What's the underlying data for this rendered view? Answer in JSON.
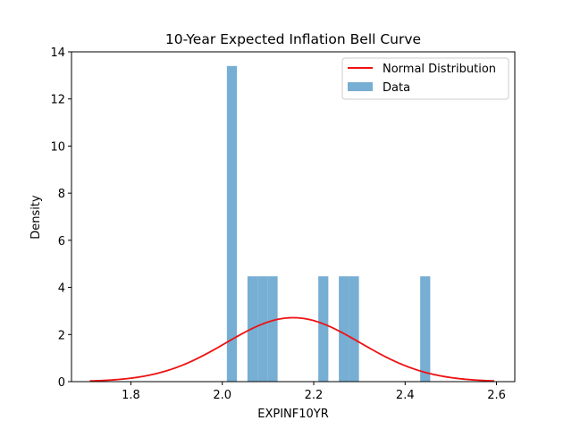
{
  "chart_data": {
    "type": "bar",
    "title": "10-Year Expected Inflation Bell Curve",
    "xlabel": "EXPINF10YR",
    "ylabel": "Density",
    "xlim": [
      1.67,
      2.64
    ],
    "ylim": [
      0,
      14
    ],
    "xticks": [
      1.8,
      2.0,
      2.2,
      2.4,
      2.6
    ],
    "yticks": [
      0,
      2,
      4,
      6,
      8,
      10,
      12,
      14
    ],
    "xtick_labels": [
      "1.8",
      "2.0",
      "2.2",
      "2.4",
      "2.6"
    ],
    "ytick_labels": [
      "0",
      "2",
      "4",
      "6",
      "8",
      "10",
      "12",
      "14"
    ],
    "legend_position": "top-right",
    "series": [
      {
        "name": "Data",
        "kind": "histogram",
        "color": "#77aed3",
        "bins": [
          {
            "x0": 2.01,
            "x1": 2.032,
            "density": 13.4
          },
          {
            "x0": 2.055,
            "x1": 2.077,
            "density": 4.47
          },
          {
            "x0": 2.077,
            "x1": 2.099,
            "density": 4.47
          },
          {
            "x0": 2.099,
            "x1": 2.121,
            "density": 4.47
          },
          {
            "x0": 2.21,
            "x1": 2.232,
            "density": 4.47
          },
          {
            "x0": 2.255,
            "x1": 2.277,
            "density": 4.47
          },
          {
            "x0": 2.277,
            "x1": 2.299,
            "density": 4.47
          },
          {
            "x0": 2.433,
            "x1": 2.455,
            "density": 4.47
          }
        ]
      },
      {
        "name": "Normal Distribution",
        "kind": "line",
        "color": "#ee1111",
        "mean": 2.155,
        "std": 0.147,
        "x_range": [
          1.71,
          2.595
        ]
      }
    ]
  }
}
